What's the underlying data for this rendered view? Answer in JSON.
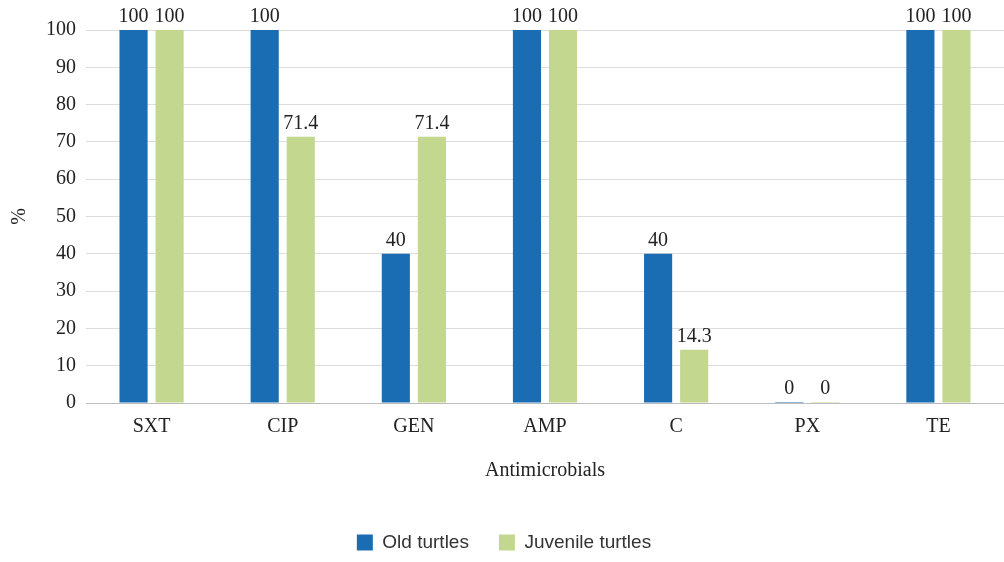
{
  "chart_data": {
    "type": "bar",
    "xlabel": "Antimicrobials",
    "ylabel": "%",
    "categories": [
      "SXT",
      "CIP",
      "GEN",
      "AMP",
      "C",
      "PX",
      "TE"
    ],
    "series": [
      {
        "name": "Old turtles",
        "color": "#1a6db3",
        "values": [
          100,
          100,
          40,
          100,
          40,
          0,
          100
        ]
      },
      {
        "name": "Juvenile turtles",
        "color": "#c3d78f",
        "values": [
          100,
          71.4,
          71.4,
          100,
          14.3,
          0,
          100
        ]
      }
    ],
    "ylim": [
      0,
      100
    ],
    "yticks": [
      0,
      10,
      20,
      30,
      40,
      50,
      60,
      70,
      80,
      90,
      100
    ],
    "grid": "y",
    "legend": "bottom",
    "data_labels": true
  }
}
